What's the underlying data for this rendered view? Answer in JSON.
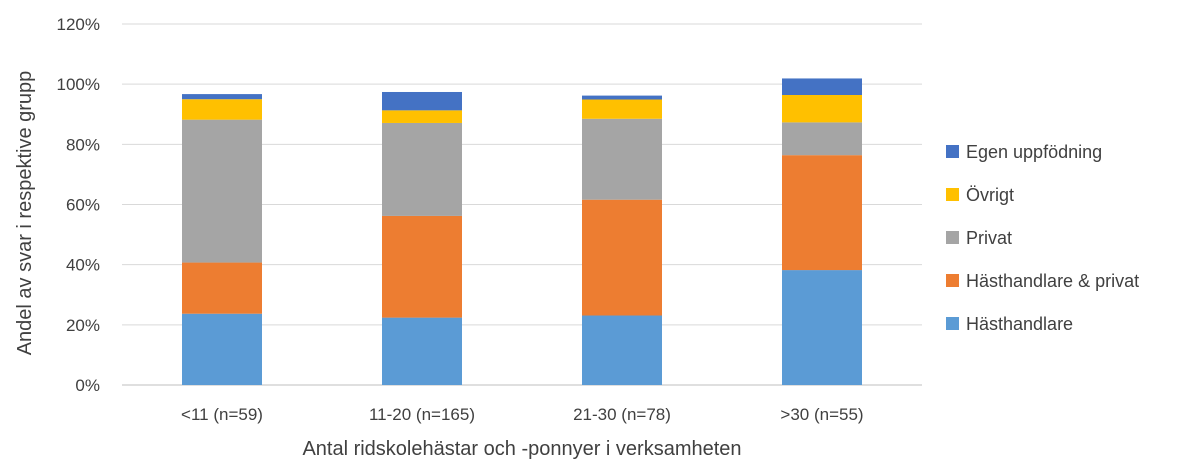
{
  "chart_data": {
    "type": "bar",
    "stacked": true,
    "title": "",
    "xlabel": "Antal ridskolehästar och -ponnyer i verksamheten",
    "ylabel": "Andel av svar i respektive grupp",
    "ylim": [
      0,
      120
    ],
    "y_ticks": [
      "0%",
      "20%",
      "40%",
      "60%",
      "80%",
      "100%",
      "120%"
    ],
    "grid": true,
    "legend_position": "right",
    "categories": [
      "<11 (n=59)",
      "11-20 (n=165)",
      "21-30 (n=78)",
      ">30 (n=55)"
    ],
    "series": [
      {
        "name": "Hästhandlare",
        "color": "#5b9bd5",
        "values": [
          23.7,
          22.4,
          23.1,
          38.2
        ]
      },
      {
        "name": "Hästhandlare & privat",
        "color": "#ed7d31",
        "values": [
          17.0,
          33.8,
          38.5,
          38.2
        ]
      },
      {
        "name": "Privat",
        "color": "#a5a5a5",
        "values": [
          47.5,
          30.9,
          26.9,
          10.9
        ]
      },
      {
        "name": "Övrigt",
        "color": "#ffc000",
        "values": [
          6.8,
          4.2,
          6.4,
          9.1
        ]
      },
      {
        "name": "Egen uppfödning",
        "color": "#4472c4",
        "values": [
          1.7,
          6.1,
          1.3,
          5.5
        ]
      }
    ]
  }
}
